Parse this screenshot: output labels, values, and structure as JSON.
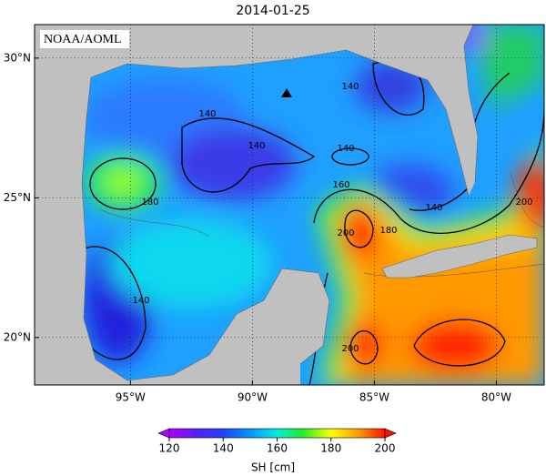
{
  "title": "2014-01-25",
  "source": "NOAA/AOML",
  "map": {
    "xlim": [
      -98.93,
      -78.04
    ],
    "ylim": [
      18.3,
      31.2
    ],
    "xticks": [
      {
        "value": -95,
        "label": "95°W"
      },
      {
        "value": -90,
        "label": "90°W"
      },
      {
        "value": -85,
        "label": "85°W"
      },
      {
        "value": -80,
        "label": "80°W"
      }
    ],
    "yticks": [
      {
        "value": 20,
        "label": "20°N"
      },
      {
        "value": 25,
        "label": "25°N"
      },
      {
        "value": 30,
        "label": "30°N"
      }
    ],
    "contour_labels": [
      140,
      140,
      140,
      140,
      160,
      180,
      180,
      200,
      140,
      200,
      140,
      200
    ]
  },
  "colorbar": {
    "label": "SH [cm]",
    "lim": [
      120,
      200
    ],
    "ticks": [
      120,
      140,
      160,
      180,
      200
    ]
  }
}
